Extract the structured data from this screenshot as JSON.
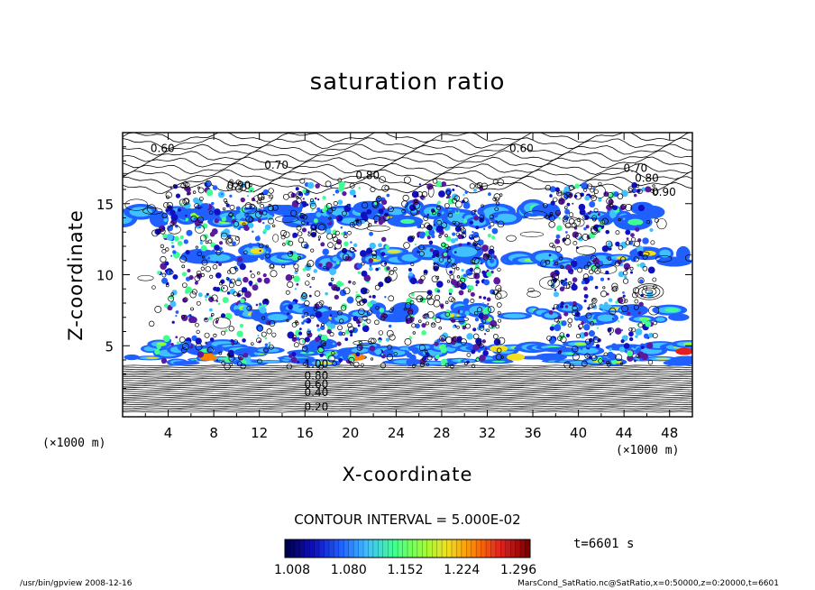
{
  "chart_data": {
    "type": "heatmap",
    "title": "saturation ratio",
    "xlabel": "X-coordinate",
    "ylabel": "Z-coordinate",
    "x_unit_label": "(×1000 m)",
    "x_ticks": [
      4,
      8,
      12,
      16,
      20,
      24,
      28,
      32,
      36,
      40,
      44,
      48
    ],
    "y_ticks": [
      5,
      10,
      15
    ],
    "xlim": [
      0,
      50
    ],
    "ylim": [
      0,
      20
    ],
    "contour_interval": "CONTOUR INTERVAL = 5.000E-02",
    "contour_labels": [
      {
        "text": "0.60",
        "x": 3.5,
        "z": 18.9
      },
      {
        "text": "0.70",
        "x": 13.5,
        "z": 17.7
      },
      {
        "text": "0.80",
        "x": 21.5,
        "z": 17.0
      },
      {
        "text": "0.90",
        "x": 10.2,
        "z": 16.3
      },
      {
        "text": "0.60",
        "x": 35.0,
        "z": 18.9
      },
      {
        "text": "0.70",
        "x": 45.0,
        "z": 17.5
      },
      {
        "text": "0.80",
        "x": 46.0,
        "z": 16.8
      },
      {
        "text": "0.90",
        "x": 47.5,
        "z": 15.8
      },
      {
        "text": "1.00",
        "x": 17.0,
        "z": 3.7
      },
      {
        "text": "0.80",
        "x": 17.0,
        "z": 2.9
      },
      {
        "text": "0.60",
        "x": 17.0,
        "z": 2.3
      },
      {
        "text": "0.40",
        "x": 17.0,
        "z": 1.7
      },
      {
        "text": "0.20",
        "x": 17.0,
        "z": 0.7
      }
    ],
    "colorbar": {
      "ticks": [
        "1.008",
        "1.080",
        "1.152",
        "1.224",
        "1.296"
      ],
      "range": [
        1.008,
        1.32
      ],
      "colors": [
        "#000050",
        "#1010c0",
        "#2060ff",
        "#40c0ff",
        "#40ff90",
        "#90ff40",
        "#f0e020",
        "#ff8000",
        "#e02020",
        "#800000"
      ]
    },
    "time": "t=6601 s",
    "grid": false,
    "legend": "colorbar-bottom"
  },
  "footer": {
    "left": "/usr/bin/gpview   2008-12-16",
    "right": "MarsCond_SatRatio.nc@SatRatio,x=0:50000,z=0:20000,t=6601"
  }
}
